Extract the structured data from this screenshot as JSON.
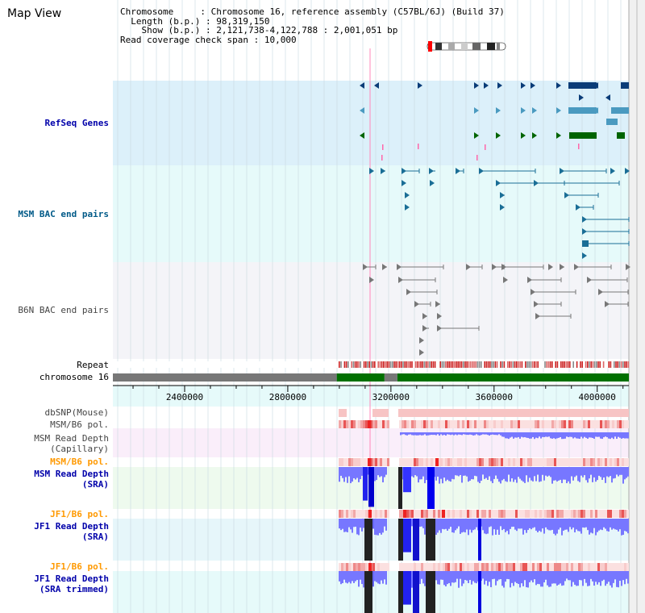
{
  "view_title": "Map View",
  "info": {
    "chromosome_key": "Chromosome",
    "chromosome_val": "Chromosome 16, reference assembly (C57BL/6J) (Build 37)",
    "length_key": "Length (b.p.)",
    "length_val": "98,319,150",
    "show_key": "Show (b.p.)",
    "show_val": "2,121,738-4,122,788 : 2,001,051 bp",
    "coverage_key": "Read coverage check span",
    "coverage_val": "10,000"
  },
  "tracks": {
    "refseq_genes": "RefSeq Genes",
    "msm_bac": "MSM BAC end pairs",
    "b6n_bac": "B6N BAC end pairs",
    "repeat": "Repeat",
    "chromosome": "chromosome 16",
    "dbsnp": "dbSNP(Mouse)",
    "msm_b6_pol_1": "MSM/B6 pol.",
    "msm_depth_cap_1": "MSM Read Depth",
    "msm_depth_cap_2": "(Capillary)",
    "msm_b6_pol_2": "MSM/B6 pol.",
    "msm_depth_sra_1": "MSM Read Depth",
    "msm_depth_sra_2": "(SRA)",
    "jf1_b6_pol_1": "JF1/B6 pol.",
    "jf1_depth_sra_1": "JF1 Read Depth",
    "jf1_depth_sra_2": "(SRA)",
    "jf1_b6_pol_2": "JF1/B6 pol.",
    "jf1_depth_trim_1": "JF1 Read Depth",
    "jf1_depth_trim_2": "(SRA trimmed)"
  },
  "axis": {
    "unit": "bp",
    "range": [
      2121738,
      4122788
    ],
    "ticks": [
      "2400000",
      "2800000",
      "3200000",
      "3600000",
      "4000000"
    ],
    "tick_values": [
      2400000,
      2800000,
      3200000,
      3600000,
      4000000
    ]
  },
  "colors": {
    "refseq_bg": "#dcf0fa",
    "msm_bg": "#e6fafa",
    "b6n_bg": "#f4f4f8",
    "gene_navy": "#0a3c78",
    "gene_lightblue": "#4a9ac0",
    "gene_green": "#006400",
    "bac_teal": "#1a6e96",
    "bac_grey": "#777777",
    "chrom_green": "#007000",
    "chrom_grey": "#777777",
    "depth_blue": "#3333ff",
    "depth_black": "#222222",
    "pol_red": "#ee2222"
  },
  "chromosome_segments": [
    {
      "start": 2121738,
      "end": 2990000,
      "type": "unknown"
    },
    {
      "start": 2990000,
      "end": 3175000,
      "type": "assembled"
    },
    {
      "start": 3175000,
      "end": 3225000,
      "type": "gap"
    },
    {
      "start": 3225000,
      "end": 4122788,
      "type": "assembled"
    }
  ]
}
